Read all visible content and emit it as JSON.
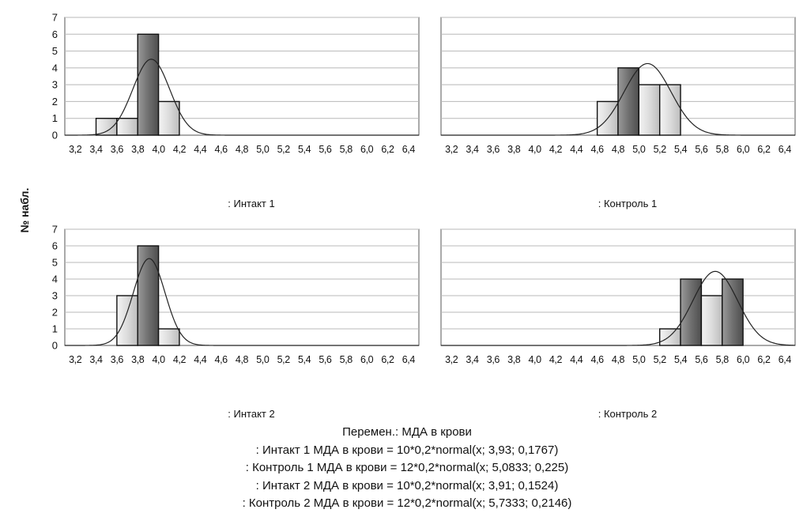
{
  "ylabel": "№ набл.",
  "legend": {
    "title": "Перемен.: МДА в крови",
    "lines": [
      ": Интакт 1 МДА в крови = 10*0,2*normal(x; 3,93; 0,1767)",
      ": Контроль 1 МДА в крови = 12*0,2*normal(x; 5,0833; 0,225)",
      ": Интакт 2 МДА в крови = 10*0,2*normal(x; 3,91; 0,1524)",
      ": Контроль 2 МДА в крови = 12*0,2*normal(x; 5,7333; 0,2146)"
    ]
  },
  "chart_data": [
    {
      "type": "bar",
      "title": ": Интакт 1",
      "ylabel": "№ набл.",
      "xlim": [
        3.1,
        6.5
      ],
      "ylim": [
        0,
        7
      ],
      "x_ticks": [
        "3,2",
        "3,4",
        "3,6",
        "3,8",
        "4,0",
        "4,2",
        "4,4",
        "4,6",
        "4,8",
        "5,0",
        "5,2",
        "5,4",
        "5,6",
        "5,8",
        "6,0",
        "6,2",
        "6,4"
      ],
      "y_ticks": [
        "0",
        "1",
        "2",
        "3",
        "4",
        "5",
        "6",
        "7"
      ],
      "bin_width": 0.2,
      "bins": [
        3.5,
        3.7,
        3.9,
        4.1
      ],
      "counts": [
        1,
        1,
        6,
        2
      ],
      "normal_fit": {
        "n": 10,
        "mean": 3.93,
        "sd": 0.1767
      },
      "grid": true
    },
    {
      "type": "bar",
      "title": ": Контроль 1",
      "xlim": [
        3.1,
        6.5
      ],
      "ylim": [
        0,
        7
      ],
      "x_ticks": [
        "3,2",
        "3,4",
        "3,6",
        "3,8",
        "4,0",
        "4,2",
        "4,4",
        "4,6",
        "4,8",
        "5,0",
        "5,2",
        "5,4",
        "5,6",
        "5,8",
        "6,0",
        "6,2",
        "6,4"
      ],
      "y_ticks": [],
      "bin_width": 0.2,
      "bins": [
        4.7,
        4.9,
        5.1,
        5.3
      ],
      "counts": [
        2,
        4,
        3,
        3
      ],
      "normal_fit": {
        "n": 12,
        "mean": 5.0833,
        "sd": 0.225
      },
      "grid": true
    },
    {
      "type": "bar",
      "title": ": Интакт 2",
      "ylabel": "№ набл.",
      "xlim": [
        3.1,
        6.5
      ],
      "ylim": [
        0,
        7
      ],
      "x_ticks": [
        "3,2",
        "3,4",
        "3,6",
        "3,8",
        "4,0",
        "4,2",
        "4,4",
        "4,6",
        "4,8",
        "5,0",
        "5,2",
        "5,4",
        "5,6",
        "5,8",
        "6,0",
        "6,2",
        "6,4"
      ],
      "y_ticks": [
        "0",
        "1",
        "2",
        "3",
        "4",
        "5",
        "6",
        "7"
      ],
      "bin_width": 0.2,
      "bins": [
        3.7,
        3.9,
        4.1
      ],
      "counts": [
        3,
        6,
        1
      ],
      "normal_fit": {
        "n": 10,
        "mean": 3.91,
        "sd": 0.1524
      },
      "grid": true
    },
    {
      "type": "bar",
      "title": ": Контроль 2",
      "xlim": [
        3.1,
        6.5
      ],
      "ylim": [
        0,
        7
      ],
      "x_ticks": [
        "3,2",
        "3,4",
        "3,6",
        "3,8",
        "4,0",
        "4,2",
        "4,4",
        "4,6",
        "4,8",
        "5,0",
        "5,2",
        "5,4",
        "5,6",
        "5,8",
        "6,0",
        "6,2",
        "6,4"
      ],
      "y_ticks": [],
      "bin_width": 0.2,
      "bins": [
        5.3,
        5.5,
        5.7,
        5.9
      ],
      "counts": [
        1,
        4,
        3,
        4
      ],
      "normal_fit": {
        "n": 12,
        "mean": 5.7333,
        "sd": 0.2146
      },
      "grid": true
    }
  ]
}
